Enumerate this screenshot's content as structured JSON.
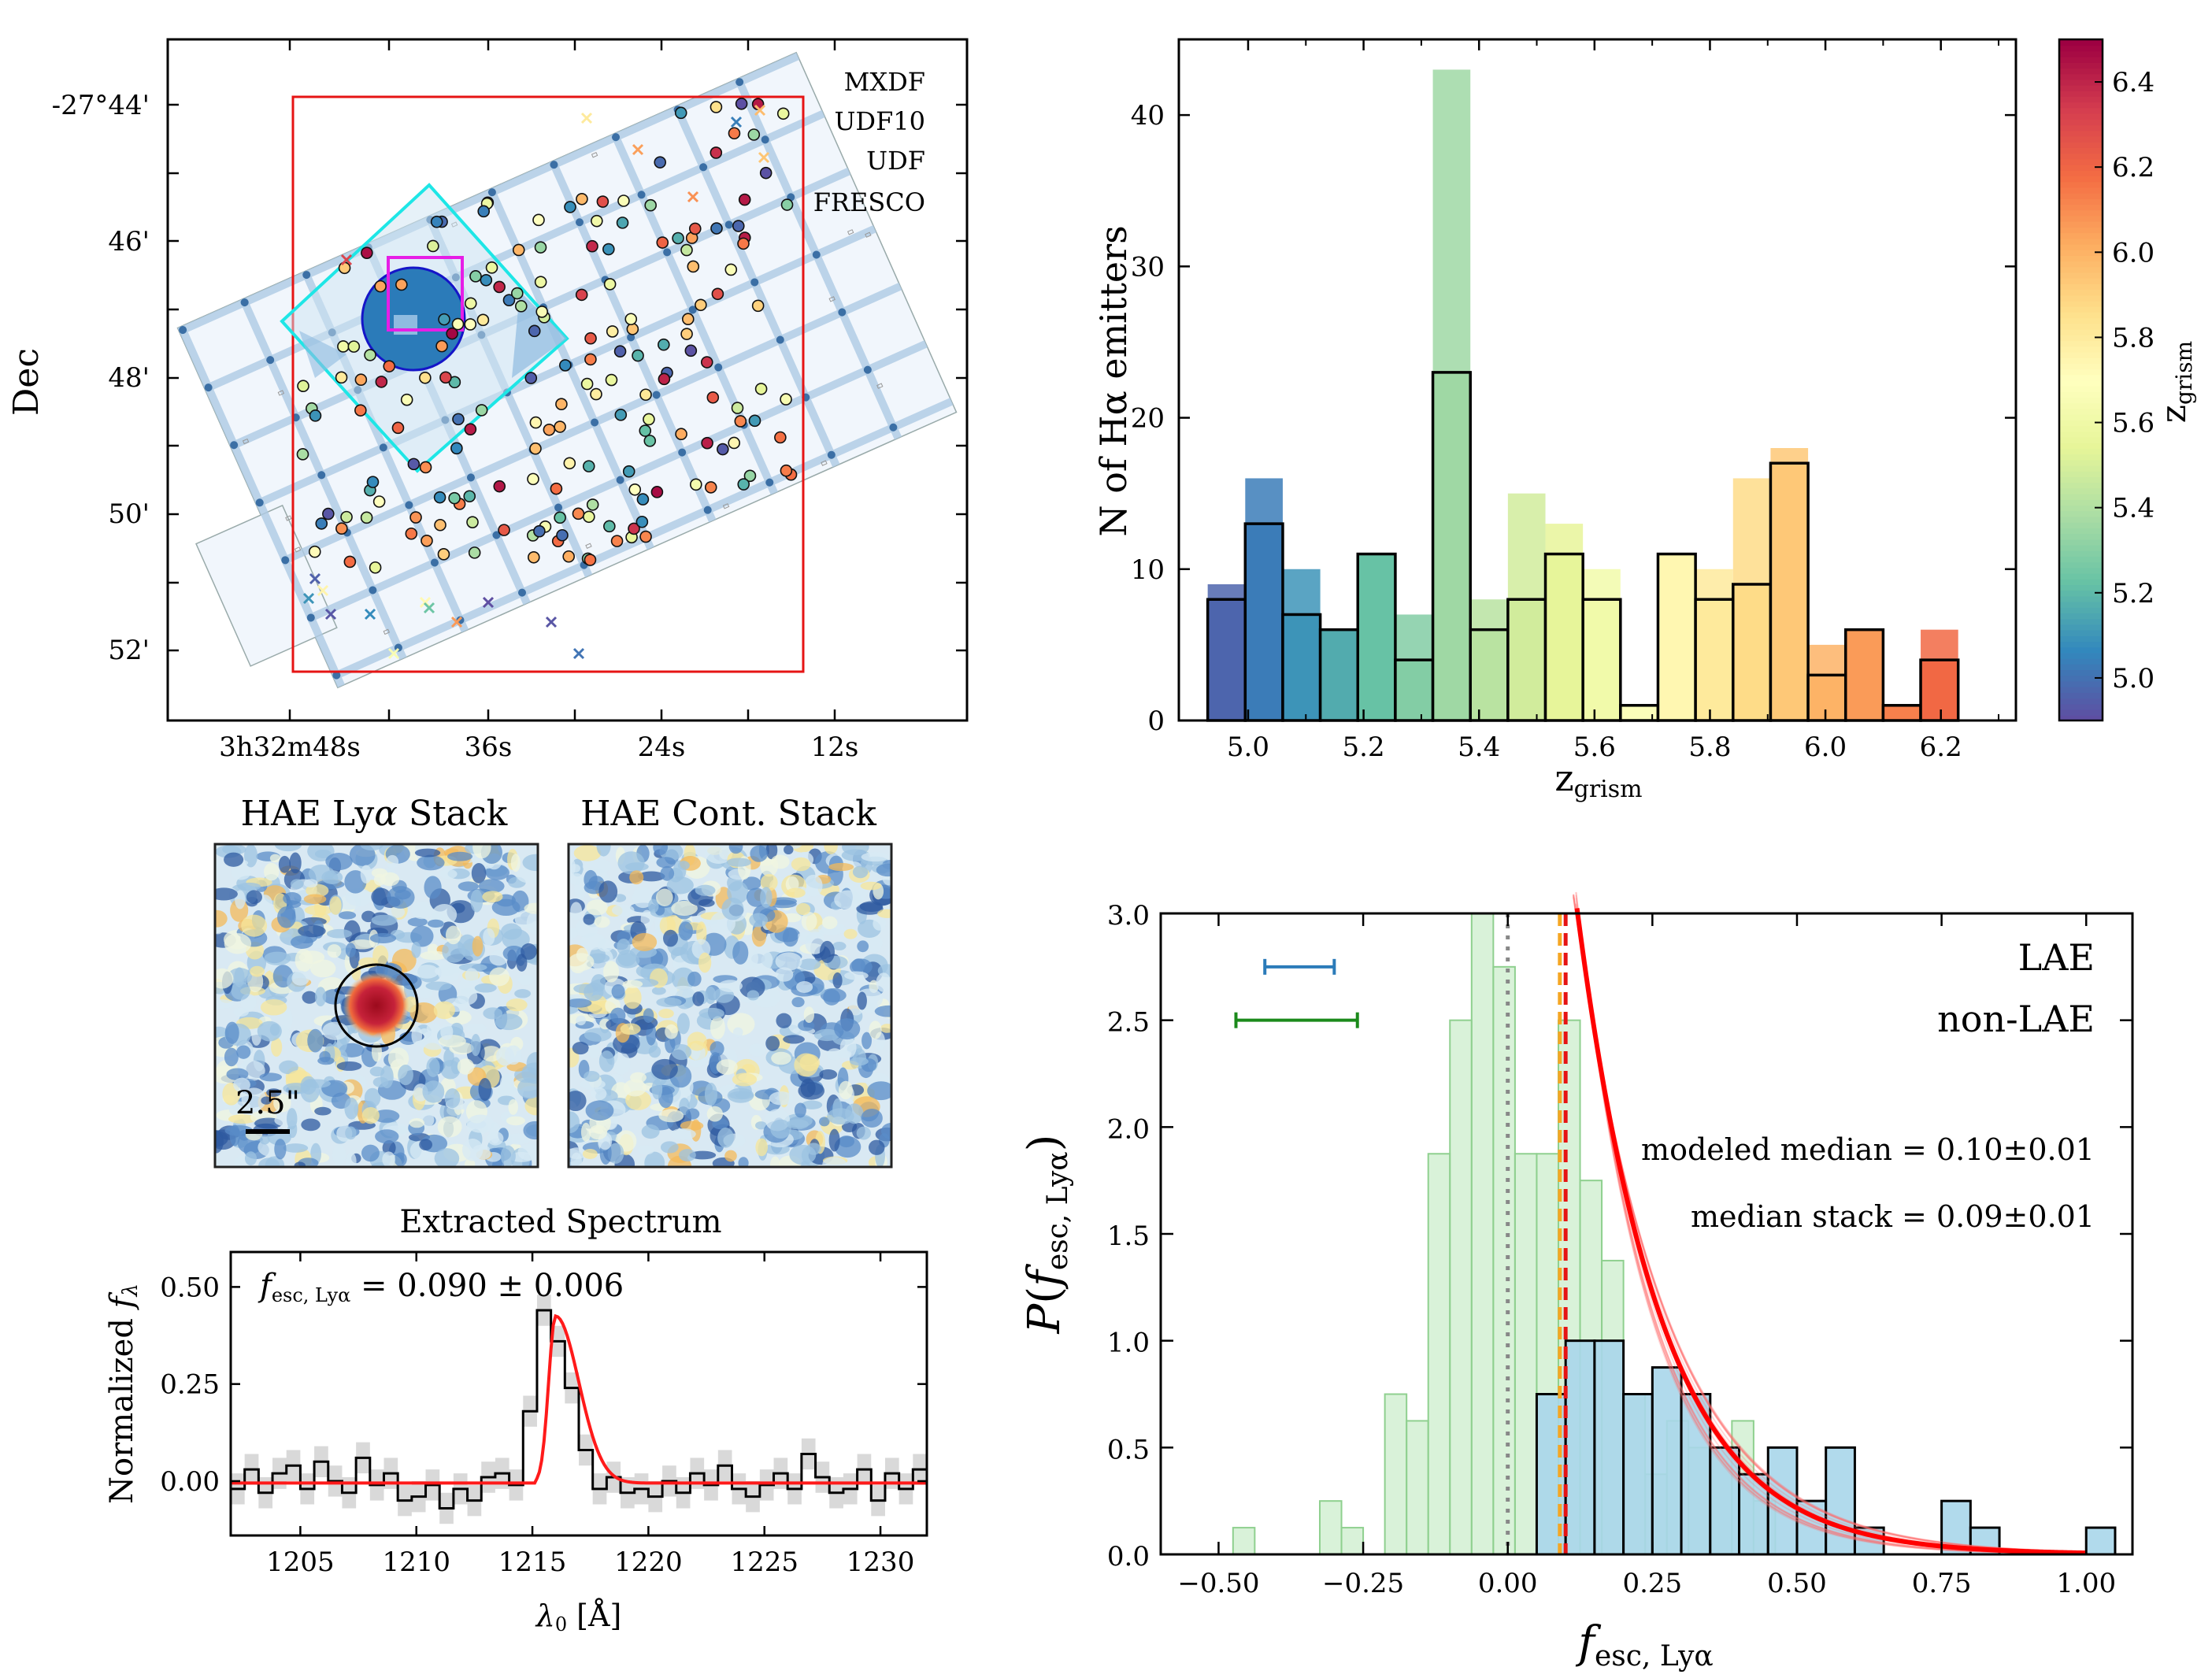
{
  "chart_data": [
    {
      "panel": "sky-map",
      "type": "scatter",
      "ylabel": "Dec",
      "x_tick_labels": [
        "3h32m48s",
        "36s",
        "24s",
        "12s"
      ],
      "y_tick_labels": [
        "-27°44'",
        "46'",
        "48'",
        "50'",
        "52'"
      ],
      "legend": [
        "MXDF",
        "UDF10",
        "UDF",
        "FRESCO"
      ],
      "legend_colors": [
        "#1515c8",
        "#e61ee6",
        "#1ee6e6",
        "#e61414"
      ],
      "legend_placement": "top-right",
      "colormap": "Spectral_r"
    },
    {
      "panel": "redshift-histogram",
      "type": "bar",
      "xlabel": "z_grism",
      "ylabel": "N of Hα emitters",
      "colorbar_label": "z_grism",
      "colorbar_range": [
        4.9,
        6.5
      ],
      "colorbar_ticks": [
        "5.0",
        "5.2",
        "5.4",
        "5.6",
        "5.8",
        "6.0",
        "6.2",
        "6.4"
      ],
      "x_ticks": [
        "5.0",
        "5.2",
        "5.4",
        "5.6",
        "5.8",
        "6.0",
        "6.2"
      ],
      "y_ticks": [
        "0",
        "10",
        "20",
        "30",
        "40"
      ],
      "xlim": [
        4.88,
        6.33
      ],
      "ylim": [
        0,
        45
      ],
      "bin_edges": [
        4.93,
        4.995,
        5.06,
        5.125,
        5.19,
        5.255,
        5.32,
        5.385,
        5.45,
        5.515,
        5.58,
        5.645,
        5.71,
        5.775,
        5.84,
        5.905,
        5.97,
        6.035,
        6.1,
        6.165,
        6.23,
        6.295
      ],
      "series": [
        {
          "name": "",
          "values": [
            9,
            16,
            10,
            6,
            11,
            7,
            43,
            8,
            15,
            13,
            10,
            0,
            11,
            10,
            16,
            18,
            5,
            6,
            1,
            6,
            0
          ]
        },
        {
          "name": "",
          "values": [
            8,
            13,
            7,
            6,
            11,
            4,
            23,
            6,
            8,
            11,
            8,
            1,
            11,
            8,
            9,
            17,
            3,
            6,
            1,
            4,
            0
          ]
        }
      ]
    },
    {
      "panel": "lya-stack-image",
      "type": "heatmap",
      "title": "HAE Lyα Stack",
      "scale_label": "2.5\""
    },
    {
      "panel": "cont-stack-image",
      "type": "heatmap",
      "title": "HAE Cont. Stack"
    },
    {
      "panel": "extracted-spectrum",
      "type": "line",
      "title": "Extracted Spectrum",
      "xlabel": "λ0 [Å]",
      "ylabel": "Normalized fλ",
      "annotation": "fesc,Lyα = 0.090 ± 0.006",
      "xlim": [
        1202,
        1232
      ],
      "ylim": [
        -0.14,
        0.59
      ],
      "x_ticks": [
        "1205",
        "1210",
        "1215",
        "1220",
        "1225",
        "1230"
      ],
      "y_ticks": [
        "0.00",
        "0.25",
        "0.50"
      ],
      "x": [
        1202.0,
        1202.6,
        1203.2,
        1203.8,
        1204.4,
        1205.0,
        1205.6,
        1206.2,
        1206.8,
        1207.4,
        1208.0,
        1208.6,
        1209.2,
        1209.8,
        1210.4,
        1211.0,
        1211.6,
        1212.2,
        1212.8,
        1213.4,
        1214.0,
        1214.6,
        1215.2,
        1215.8,
        1216.4,
        1217.0,
        1217.6,
        1218.2,
        1218.8,
        1219.4,
        1220.0,
        1220.6,
        1221.2,
        1221.8,
        1222.4,
        1223.0,
        1223.6,
        1224.2,
        1224.8,
        1225.4,
        1226.0,
        1226.6,
        1227.2,
        1227.8,
        1228.4,
        1229.0,
        1229.6,
        1230.2,
        1230.8,
        1231.4
      ],
      "flux": [
        -0.02,
        0.03,
        -0.03,
        0.02,
        0.04,
        -0.02,
        0.05,
        0.0,
        -0.03,
        0.06,
        -0.01,
        0.02,
        -0.05,
        -0.04,
        -0.01,
        -0.07,
        -0.02,
        -0.05,
        0.01,
        0.02,
        -0.01,
        0.18,
        0.44,
        0.36,
        0.24,
        0.08,
        -0.02,
        0.01,
        -0.03,
        -0.02,
        -0.04,
        0.0,
        -0.03,
        0.02,
        -0.01,
        0.04,
        -0.02,
        -0.04,
        -0.01,
        0.02,
        -0.02,
        0.07,
        0.01,
        -0.03,
        -0.02,
        0.03,
        -0.05,
        0.02,
        -0.02,
        0.03
      ],
      "model_peak": 0.43,
      "model_center": 1216.0
    },
    {
      "panel": "fesc-distribution",
      "type": "bar",
      "xlabel": "fesc,Lyα",
      "ylabel": "P(fesc,Lyα)",
      "xlim": [
        -0.6,
        1.08
      ],
      "ylim": [
        0,
        3.0
      ],
      "x_ticks": [
        "−0.50",
        "−0.25",
        "0.00",
        "0.25",
        "0.50",
        "0.75",
        "1.00"
      ],
      "y_ticks": [
        "0.0",
        "0.5",
        "1.0",
        "1.5",
        "2.0",
        "2.5",
        "3.0"
      ],
      "legend": [
        "LAE",
        "non-LAE"
      ],
      "legend_colors": [
        "#2b7bb9",
        "#1b8a1b"
      ],
      "non_lae_edges": [
        -0.475,
        -0.4375,
        -0.4,
        -0.3625,
        -0.325,
        -0.2875,
        -0.25,
        -0.2125,
        -0.175,
        -0.1375,
        -0.1,
        -0.0625,
        -0.025,
        0.0125,
        0.05,
        0.0875,
        0.125,
        0.1625,
        0.2,
        0.2375,
        0.275,
        0.3125,
        0.35,
        0.3875,
        0.425,
        0.4625,
        0.5
      ],
      "non_lae_values": [
        0.125,
        0,
        0,
        0,
        0.25,
        0.125,
        0,
        0.75,
        0.625,
        1.875,
        2.5,
        3.0,
        2.75,
        1.875,
        1.875,
        2.5,
        1.75,
        1.375,
        0.75,
        0.375,
        0.625,
        0.5,
        0.5,
        0.625,
        0.25,
        0
      ],
      "lae_edges": [
        0.05,
        0.1,
        0.15,
        0.2,
        0.25,
        0.3,
        0.35,
        0.4,
        0.45,
        0.5,
        0.55,
        0.6,
        0.65,
        0.7,
        0.75,
        0.8,
        0.85,
        0.9,
        0.95,
        1.0,
        1.05
      ],
      "lae_values": [
        0.75,
        1.0,
        1.0,
        0.75,
        0.875,
        0.75,
        0.5,
        0.375,
        0.5,
        0.25,
        0.5,
        0.125,
        0,
        0,
        0.25,
        0.125,
        0,
        0,
        0,
        0.125
      ],
      "errorbars": [
        {
          "name": "LAE",
          "y": 2.75,
          "x_low": -0.42,
          "x_high": -0.3
        },
        {
          "name": "non-LAE",
          "y": 2.5,
          "x_low": -0.47,
          "x_high": -0.26
        }
      ],
      "vlines": [
        {
          "x": 0.0,
          "style": "dotted",
          "color": "#888888"
        },
        {
          "x": 0.09,
          "style": "dashed",
          "color": "#f5a623"
        },
        {
          "x": 0.1,
          "style": "dashed",
          "color": "#e61414"
        }
      ],
      "model_lambda": 6.93,
      "annotations": [
        "modeled median = 0.10±0.01",
        "median stack = 0.09±0.01"
      ],
      "annotation_colors": [
        "#e61414",
        "#f5a623"
      ]
    }
  ]
}
